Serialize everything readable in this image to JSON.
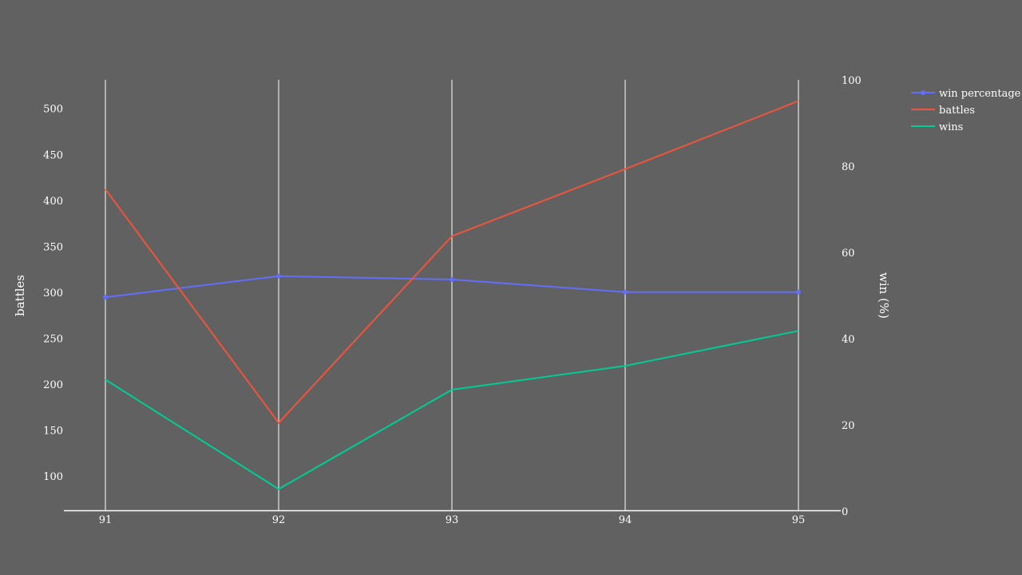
{
  "chart_data": {
    "type": "line",
    "x": [
      "91",
      "92",
      "93",
      "94",
      "95"
    ],
    "series": [
      {
        "name": "win percentage",
        "axis": "right",
        "markers": true,
        "color": "#636efa",
        "values": [
          49.6,
          54.5,
          53.7,
          50.8,
          50.8
        ]
      },
      {
        "name": "battles",
        "axis": "left",
        "markers": false,
        "color": "#ef553b",
        "values": [
          412,
          158,
          361,
          434,
          508
        ]
      },
      {
        "name": "wins",
        "axis": "left",
        "markers": false,
        "color": "#00cc96",
        "values": [
          205,
          86,
          194,
          220,
          258
        ]
      }
    ],
    "y_left": {
      "label": "battles",
      "range": [
        62,
        531
      ],
      "ticks": [
        100,
        150,
        200,
        250,
        300,
        350,
        400,
        450,
        500
      ]
    },
    "y_right": {
      "label": "win (%)",
      "range": [
        0,
        100
      ],
      "ticks": [
        0,
        20,
        40,
        60,
        80,
        100
      ]
    },
    "grid": {
      "vertical": true,
      "horizontal": false
    },
    "legend": "top-right",
    "colors": {
      "background": "#616161",
      "text": "#ffffff",
      "grid": "#ffffff"
    }
  }
}
